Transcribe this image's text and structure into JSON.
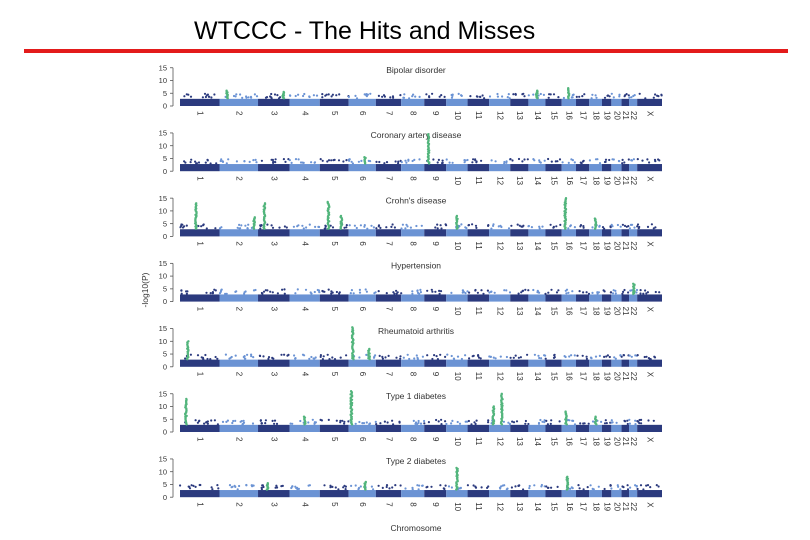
{
  "slide": {
    "title": "WTCCC - The Hits and Misses",
    "accent_color": "#e31b1b"
  },
  "chart_data": {
    "type": "scatter",
    "ylabel": "-log10(P)",
    "xlabel": "Chromosome",
    "ylim": [
      0,
      15
    ],
    "yticks": [
      0,
      5,
      10,
      15
    ],
    "chromosomes": [
      "1",
      "2",
      "3",
      "4",
      "5",
      "6",
      "7",
      "8",
      "9",
      "10",
      "11",
      "12",
      "13",
      "14",
      "15",
      "16",
      "17",
      "18",
      "19",
      "20",
      "21",
      "22",
      "X"
    ],
    "colors": {
      "odd": "#2b3a7e",
      "even": "#6b93d4",
      "hit": "#52b57c"
    },
    "panels": [
      {
        "name": "Bipolar disorder",
        "hits": [
          {
            "chrom": "2",
            "pos": 0.2,
            "max": 6
          },
          {
            "chrom": "3",
            "pos": 0.8,
            "max": 5.5
          },
          {
            "chrom": "14",
            "pos": 0.5,
            "max": 6
          },
          {
            "chrom": "16",
            "pos": 0.5,
            "max": 7
          }
        ]
      },
      {
        "name": "Coronary artery disease",
        "hits": [
          {
            "chrom": "9",
            "pos": 0.2,
            "max": 14.5
          },
          {
            "chrom": "6",
            "pos": 0.6,
            "max": 5.5
          }
        ]
      },
      {
        "name": "Crohn's disease",
        "hits": [
          {
            "chrom": "1",
            "pos": 0.4,
            "max": 13
          },
          {
            "chrom": "2",
            "pos": 0.9,
            "max": 7.5
          },
          {
            "chrom": "3",
            "pos": 0.2,
            "max": 13
          },
          {
            "chrom": "5",
            "pos": 0.3,
            "max": 13.5
          },
          {
            "chrom": "5",
            "pos": 0.75,
            "max": 8
          },
          {
            "chrom": "10",
            "pos": 0.5,
            "max": 8
          },
          {
            "chrom": "16",
            "pos": 0.25,
            "max": 15
          },
          {
            "chrom": "18",
            "pos": 0.5,
            "max": 7
          }
        ]
      },
      {
        "name": "Hypertension",
        "hits": [
          {
            "chrom": "22",
            "pos": 0.6,
            "max": 7
          }
        ]
      },
      {
        "name": "Rheumatoid arthritis",
        "hits": [
          {
            "chrom": "1",
            "pos": 0.2,
            "max": 10
          },
          {
            "chrom": "6",
            "pos": 0.15,
            "max": 15.5
          },
          {
            "chrom": "6",
            "pos": 0.75,
            "max": 7
          }
        ]
      },
      {
        "name": "Type 1 diabetes",
        "hits": [
          {
            "chrom": "1",
            "pos": 0.15,
            "max": 13
          },
          {
            "chrom": "4",
            "pos": 0.5,
            "max": 6
          },
          {
            "chrom": "6",
            "pos": 0.1,
            "max": 16
          },
          {
            "chrom": "12",
            "pos": 0.2,
            "max": 10
          },
          {
            "chrom": "12",
            "pos": 0.6,
            "max": 15
          },
          {
            "chrom": "16",
            "pos": 0.3,
            "max": 8
          },
          {
            "chrom": "18",
            "pos": 0.5,
            "max": 6
          }
        ]
      },
      {
        "name": "Type 2 diabetes",
        "hits": [
          {
            "chrom": "10",
            "pos": 0.5,
            "max": 11.5
          },
          {
            "chrom": "6",
            "pos": 0.6,
            "max": 6
          },
          {
            "chrom": "16",
            "pos": 0.4,
            "max": 8
          },
          {
            "chrom": "3",
            "pos": 0.3,
            "max": 5.5
          }
        ]
      }
    ]
  }
}
